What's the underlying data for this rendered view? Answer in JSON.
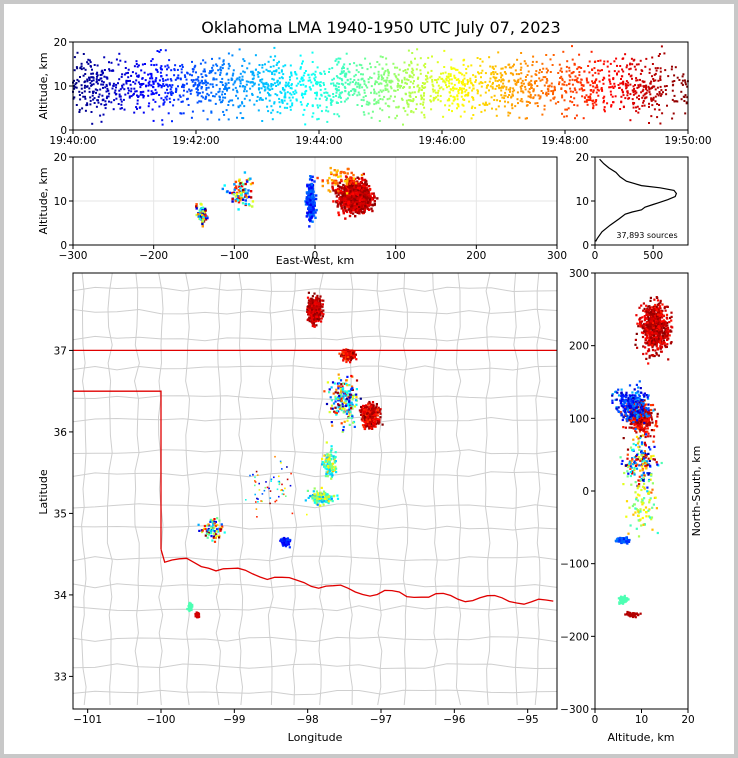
{
  "title": "Oklahoma LMA 1940-1950 UTC July 07, 2023",
  "source_count_label": "37,893 sources",
  "chart_data": [
    {
      "id": "time-altitude",
      "type": "scatter",
      "xlabel": "",
      "ylabel": "Altitude, km",
      "xticks": [
        "19:40:00",
        "19:42:00",
        "19:44:00",
        "19:46:00",
        "19:48:00",
        "19:50:00"
      ],
      "xlim": [
        "19:40:00",
        "19:50:00"
      ],
      "ylim": [
        0,
        20
      ],
      "yticks": [
        0,
        10,
        20
      ],
      "color_encoding": "time (jet colormap)"
    },
    {
      "id": "ew-altitude",
      "type": "scatter",
      "xlabel": "East-West, km",
      "ylabel": "Altitude, km",
      "xlim": [
        -300,
        300
      ],
      "xticks": [
        -300,
        -200,
        -100,
        0,
        100,
        200,
        300
      ],
      "ylim": [
        0,
        20
      ],
      "yticks": [
        0,
        10,
        20
      ],
      "grid": true
    },
    {
      "id": "altitude-histogram",
      "type": "line",
      "xlim": [
        0,
        800
      ],
      "xticks": [
        0,
        500
      ],
      "ylim": [
        0,
        20
      ],
      "yticks": [
        0,
        10,
        20
      ],
      "annotation": "37,893 sources",
      "series": [
        {
          "x": [
            5,
            20,
            60,
            130,
            210,
            260,
            320,
            400,
            430,
            500,
            545,
            625,
            690,
            700,
            680,
            560,
            400,
            270,
            215,
            180,
            120,
            75,
            40
          ],
          "y": [
            0.8,
            1.5,
            3,
            4.5,
            6,
            7,
            7.5,
            8,
            8.6,
            9.2,
            9.6,
            10.3,
            11,
            11.7,
            12.4,
            13,
            13.5,
            14.5,
            15.5,
            16.5,
            17.5,
            18.5,
            19.5
          ]
        }
      ]
    },
    {
      "id": "plan-view",
      "type": "scatter",
      "xlabel": "Longitude",
      "ylabel": "Latitude",
      "xlim": [
        -101.2,
        -94.6
      ],
      "xticks": [
        -101,
        -100,
        -99,
        -98,
        -97,
        -96,
        -95
      ],
      "ylim": [
        32.6,
        37.95
      ],
      "yticks": [
        33,
        34,
        35,
        36,
        37
      ],
      "colors": {
        "state_border": "#e00000",
        "county_lines": "#c8c8c8"
      }
    },
    {
      "id": "altitude-ns",
      "type": "scatter",
      "xlabel": "Altitude, km",
      "ylabel": "North-South, km",
      "xlim": [
        0,
        20
      ],
      "xticks": [
        0,
        10,
        20
      ],
      "ylim": [
        -300,
        300
      ],
      "yticks": [
        -300,
        -200,
        -100,
        0,
        100,
        200,
        300
      ]
    }
  ]
}
